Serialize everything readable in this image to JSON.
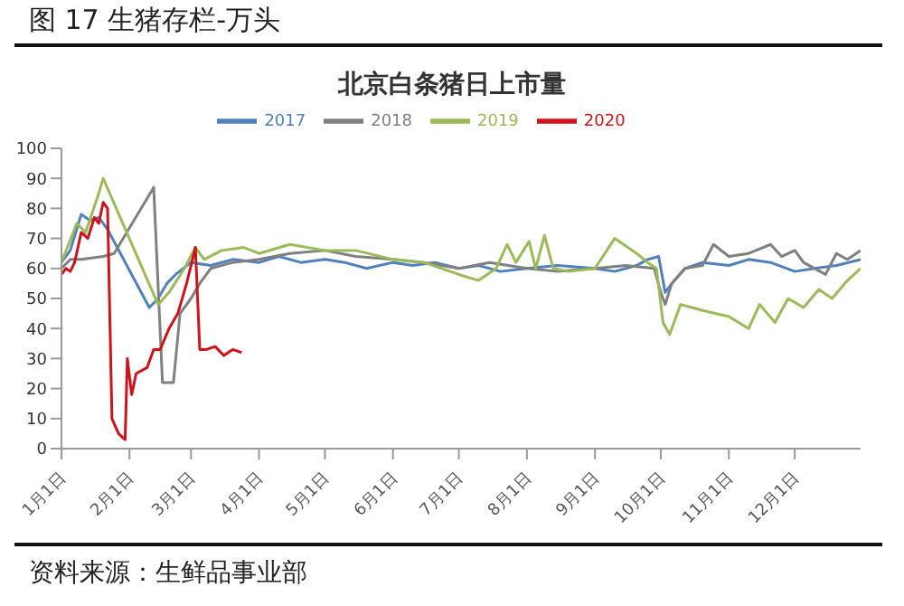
{
  "chart_data": {
    "type": "line",
    "title": "图 17 生猪存栏-万头",
    "subtitle": "北京白条猪日上市量",
    "annotations": [
      "资料来源：生鲜品事业部"
    ],
    "xlim": [
      "--01-01",
      "--12-31"
    ],
    "xticks": [
      {
        "value": "--01-01",
        "label": "1月1日"
      },
      {
        "value": "--02-01",
        "label": "2月1日"
      },
      {
        "value": "--03-01",
        "label": "3月1日"
      },
      {
        "value": "--04-01",
        "label": "4月1日"
      },
      {
        "value": "--05-01",
        "label": "5月1日"
      },
      {
        "value": "--06-01",
        "label": "6月1日"
      },
      {
        "value": "--07-01",
        "label": "7月1日"
      },
      {
        "value": "--08-01",
        "label": "8月1日"
      },
      {
        "value": "--09-01",
        "label": "9月1日"
      },
      {
        "value": "--10-01",
        "label": "10月1日"
      },
      {
        "value": "--11-01",
        "label": "11月1日"
      },
      {
        "value": "--12-01",
        "label": "12月1日"
      }
    ],
    "ylim": [
      0,
      100
    ],
    "yticks": [
      0,
      10,
      20,
      30,
      40,
      50,
      60,
      70,
      80,
      90,
      100
    ],
    "grid": false,
    "legend": "top",
    "marker": "none",
    "line_style": "solid",
    "series": [
      {
        "name": "2017",
        "color": "#4f81bd",
        "x": [
          "--01-01",
          "--01-05",
          "--01-10",
          "--01-14",
          "--01-18",
          "--01-22",
          "--02-10",
          "--02-14",
          "--02-18",
          "--02-22",
          "--03-01",
          "--03-10",
          "--03-20",
          "--04-01",
          "--04-10",
          "--04-20",
          "--05-01",
          "--05-10",
          "--05-20",
          "--06-01",
          "--06-10",
          "--06-20",
          "--07-01",
          "--07-10",
          "--07-20",
          "--08-01",
          "--08-15",
          "--09-01",
          "--09-10",
          "--09-20",
          "--09-25",
          "--09-30",
          "--10-03",
          "--10-06",
          "--10-12",
          "--10-20",
          "--11-01",
          "--11-10",
          "--11-20",
          "--12-01",
          "--12-10",
          "--12-20",
          "--12-31"
        ],
        "values": [
          62,
          66,
          78,
          76,
          77,
          73,
          47,
          50,
          55,
          58,
          62,
          61,
          63,
          62,
          64,
          62,
          63,
          62,
          60,
          62,
          61,
          62,
          60,
          61,
          59,
          60,
          61,
          60,
          59,
          61,
          63,
          64,
          52,
          55,
          60,
          62,
          61,
          63,
          62,
          59,
          60,
          61,
          63
        ]
      },
      {
        "name": "2018",
        "color": "#808080",
        "x": [
          "--01-01",
          "--01-05",
          "--01-10",
          "--01-20",
          "--01-25",
          "--02-12",
          "--02-16",
          "--02-21",
          "--02-24",
          "--03-01",
          "--03-05",
          "--03-10",
          "--03-20",
          "--04-01",
          "--04-15",
          "--05-01",
          "--05-15",
          "--06-01",
          "--06-15",
          "--07-01",
          "--07-15",
          "--08-01",
          "--08-15",
          "--09-01",
          "--09-15",
          "--09-28",
          "--10-01",
          "--10-03",
          "--10-06",
          "--10-12",
          "--10-20",
          "--10-25",
          "--11-01",
          "--11-10",
          "--11-20",
          "--11-25",
          "--12-01",
          "--12-05",
          "--12-15",
          "--12-20",
          "--12-25",
          "--12-31"
        ],
        "values": [
          60,
          63,
          63,
          64,
          65,
          87,
          22,
          22,
          45,
          50,
          55,
          60,
          62,
          63,
          65,
          66,
          64,
          63,
          62,
          60,
          62,
          60,
          59,
          60,
          61,
          60,
          52,
          48,
          55,
          60,
          61,
          68,
          64,
          65,
          68,
          64,
          66,
          62,
          58,
          65,
          63,
          66
        ]
      },
      {
        "name": "2019",
        "color": "#9bbb59",
        "x": [
          "--01-01",
          "--01-08",
          "--01-12",
          "--01-18",
          "--01-20",
          "--02-14",
          "--02-19",
          "--02-26",
          "--03-03",
          "--03-07",
          "--03-15",
          "--03-25",
          "--04-01",
          "--04-15",
          "--05-01",
          "--05-15",
          "--06-01",
          "--06-15",
          "--07-01",
          "--07-10",
          "--07-18",
          "--07-23",
          "--07-27",
          "--08-02",
          "--08-05",
          "--08-09",
          "--08-13",
          "--08-20",
          "--09-01",
          "--09-10",
          "--09-20",
          "--09-25",
          "--09-29",
          "--10-02",
          "--10-05",
          "--10-10",
          "--10-20",
          "--11-01",
          "--11-10",
          "--11-15",
          "--11-22",
          "--11-28",
          "--12-05",
          "--12-12",
          "--12-18",
          "--12-25",
          "--12-31"
        ],
        "values": [
          62,
          75,
          72,
          85,
          90,
          48,
          52,
          60,
          67,
          63,
          66,
          67,
          65,
          68,
          66,
          66,
          63,
          62,
          58,
          56,
          60,
          68,
          62,
          69,
          60,
          71,
          60,
          59,
          60,
          70,
          65,
          62,
          60,
          42,
          38,
          48,
          46,
          44,
          40,
          48,
          42,
          50,
          47,
          53,
          50,
          56,
          60
        ]
      },
      {
        "name": "2020",
        "color": "#d0121b",
        "x": [
          "--01-01",
          "--01-03",
          "--01-05",
          "--01-07",
          "--01-10",
          "--01-13",
          "--01-16",
          "--01-18",
          "--01-20",
          "--01-22",
          "--01-24",
          "--01-27",
          "--01-30",
          "--01-31",
          "--02-02",
          "--02-04",
          "--02-09",
          "--02-12",
          "--02-15",
          "--02-19",
          "--02-23",
          "--02-27",
          "--03-03",
          "--03-05",
          "--03-08",
          "--03-12",
          "--03-16",
          "--03-20",
          "--03-24"
        ],
        "values": [
          58,
          60,
          59,
          62,
          72,
          70,
          77,
          75,
          82,
          80,
          10,
          5,
          3,
          30,
          18,
          25,
          27,
          33,
          33,
          40,
          45,
          55,
          67,
          33,
          33,
          34,
          31,
          33,
          32
        ]
      }
    ]
  }
}
